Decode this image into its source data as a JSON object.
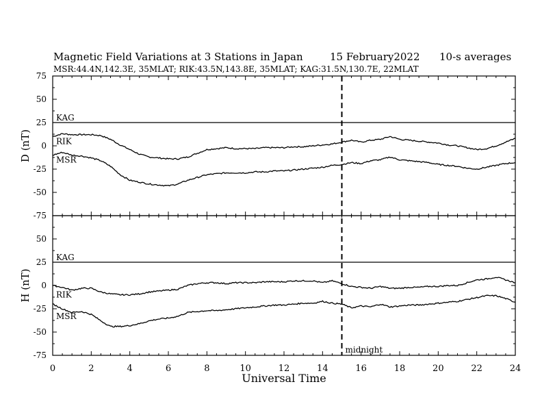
{
  "header": {
    "title": "Magnetic Field Variations at 3 Stations in Japan",
    "date": "15 February2022",
    "averaging": "10-s averages",
    "stations": "MSR:44.4N,142.3E, 35MLAT;  RIK:43.5N,143.8E, 35MLAT;  KAG:31.5N,130.7E, 22MLAT"
  },
  "chart_data": [
    {
      "type": "line",
      "ylabel": "D (nT)",
      "xlim": [
        0,
        24
      ],
      "ylim": [
        -75,
        75
      ],
      "yticks": [
        -75,
        -50,
        -25,
        0,
        25,
        50,
        75
      ],
      "series": [
        {
          "name": "KAG",
          "x": [
            0,
            24
          ],
          "y": [
            25,
            25
          ]
        },
        {
          "name": "RIK",
          "x": [
            0,
            0.5,
            1,
            1.5,
            2,
            2.5,
            3,
            3.5,
            4,
            4.5,
            5,
            5.5,
            6,
            6.5,
            7,
            7.5,
            8,
            8.5,
            9,
            9.5,
            10,
            10.5,
            11,
            11.5,
            12,
            12.5,
            13,
            13.5,
            14,
            14.5,
            15,
            15.5,
            16,
            16.5,
            17,
            17.5,
            18,
            18.5,
            19,
            19.5,
            20,
            20.5,
            21,
            21.5,
            22,
            22.5,
            23,
            23.5,
            24
          ],
          "y": [
            10,
            13,
            12,
            12,
            12,
            11,
            7,
            1,
            -4,
            -9,
            -12,
            -13,
            -14,
            -14,
            -12,
            -8,
            -4,
            -3,
            -2,
            -3,
            -3,
            -3,
            -2,
            -2,
            -2,
            -1,
            -1,
            0,
            1,
            2,
            4,
            6,
            4,
            6,
            7,
            10,
            7,
            6,
            5,
            4,
            3,
            1,
            0,
            -2,
            -4,
            -3,
            0,
            4,
            8
          ]
        },
        {
          "name": "MSR",
          "x": [
            0,
            0.5,
            1,
            1.5,
            2,
            2.5,
            3,
            3.5,
            4,
            4.5,
            5,
            5.5,
            6,
            6.5,
            7,
            7.5,
            8,
            8.5,
            9,
            9.5,
            10,
            10.5,
            11,
            11.5,
            12,
            12.5,
            13,
            13.5,
            14,
            14.5,
            15,
            15.5,
            16,
            16.5,
            17,
            17.5,
            18,
            18.5,
            19,
            19.5,
            20,
            20.5,
            21,
            21.5,
            22,
            22.5,
            23,
            23.5,
            24
          ],
          "y": [
            -10,
            -7,
            -10,
            -11,
            -13,
            -16,
            -22,
            -31,
            -37,
            -39,
            -41,
            -42,
            -43,
            -41,
            -37,
            -34,
            -31,
            -30,
            -29,
            -29,
            -29,
            -28,
            -28,
            -27,
            -27,
            -26,
            -25,
            -24,
            -23,
            -21,
            -20,
            -18,
            -19,
            -16,
            -15,
            -12,
            -15,
            -16,
            -17,
            -18,
            -20,
            -21,
            -22,
            -24,
            -25,
            -23,
            -21,
            -19,
            -18
          ]
        }
      ]
    },
    {
      "type": "line",
      "ylabel": "H (nT)",
      "xlabel": "Universal Time",
      "xlim": [
        0,
        24
      ],
      "ylim": [
        -75,
        75
      ],
      "xticks": [
        0,
        2,
        4,
        6,
        8,
        10,
        12,
        14,
        16,
        18,
        20,
        22,
        24
      ],
      "yticks": [
        -75,
        -50,
        -25,
        0,
        25,
        50,
        75
      ],
      "series": [
        {
          "name": "KAG",
          "x": [
            0,
            24
          ],
          "y": [
            25,
            25
          ]
        },
        {
          "name": "RIK",
          "x": [
            0,
            0.5,
            1,
            1.5,
            2,
            2.5,
            3,
            3.5,
            4,
            4.5,
            5,
            5.5,
            6,
            6.5,
            7,
            7.5,
            8,
            8.5,
            9,
            9.5,
            10,
            10.5,
            11,
            11.5,
            12,
            12.5,
            13,
            13.5,
            14,
            14.5,
            15,
            15.5,
            16,
            16.5,
            17,
            17.5,
            18,
            18.5,
            19,
            19.5,
            20,
            20.5,
            21,
            21.5,
            22,
            22.5,
            23,
            23.5,
            24
          ],
          "y": [
            0,
            -2,
            -5,
            -3,
            -3,
            -7,
            -9,
            -10,
            -10,
            -9,
            -7,
            -6,
            -5,
            -4,
            0,
            2,
            3,
            3,
            2,
            3,
            3,
            3,
            4,
            4,
            4,
            5,
            5,
            5,
            3,
            5,
            2,
            -1,
            -2,
            -3,
            -1,
            -3,
            -3,
            -2,
            -2,
            -1,
            -1,
            0,
            0,
            3,
            6,
            7,
            9,
            6,
            3
          ]
        },
        {
          "name": "MSR",
          "x": [
            0,
            0.5,
            1,
            1.5,
            2,
            2.5,
            3,
            3.5,
            4,
            4.5,
            5,
            5.5,
            6,
            6.5,
            7,
            7.5,
            8,
            8.5,
            9,
            9.5,
            10,
            10.5,
            11,
            11.5,
            12,
            12.5,
            13,
            13.5,
            14,
            14.5,
            15,
            15.5,
            16,
            16.5,
            17,
            17.5,
            18,
            18.5,
            19,
            19.5,
            20,
            20.5,
            21,
            21.5,
            22,
            22.5,
            23,
            23.5,
            24
          ],
          "y": [
            -20,
            -25,
            -29,
            -28,
            -31,
            -38,
            -44,
            -44,
            -43,
            -41,
            -38,
            -36,
            -35,
            -33,
            -29,
            -28,
            -27,
            -27,
            -26,
            -25,
            -24,
            -23,
            -22,
            -21,
            -21,
            -20,
            -19,
            -19,
            -17,
            -19,
            -20,
            -24,
            -22,
            -23,
            -20,
            -23,
            -22,
            -21,
            -21,
            -20,
            -19,
            -18,
            -17,
            -15,
            -13,
            -11,
            -11,
            -14,
            -18
          ]
        }
      ]
    }
  ],
  "marker": {
    "label": "midnight",
    "x": 15
  }
}
